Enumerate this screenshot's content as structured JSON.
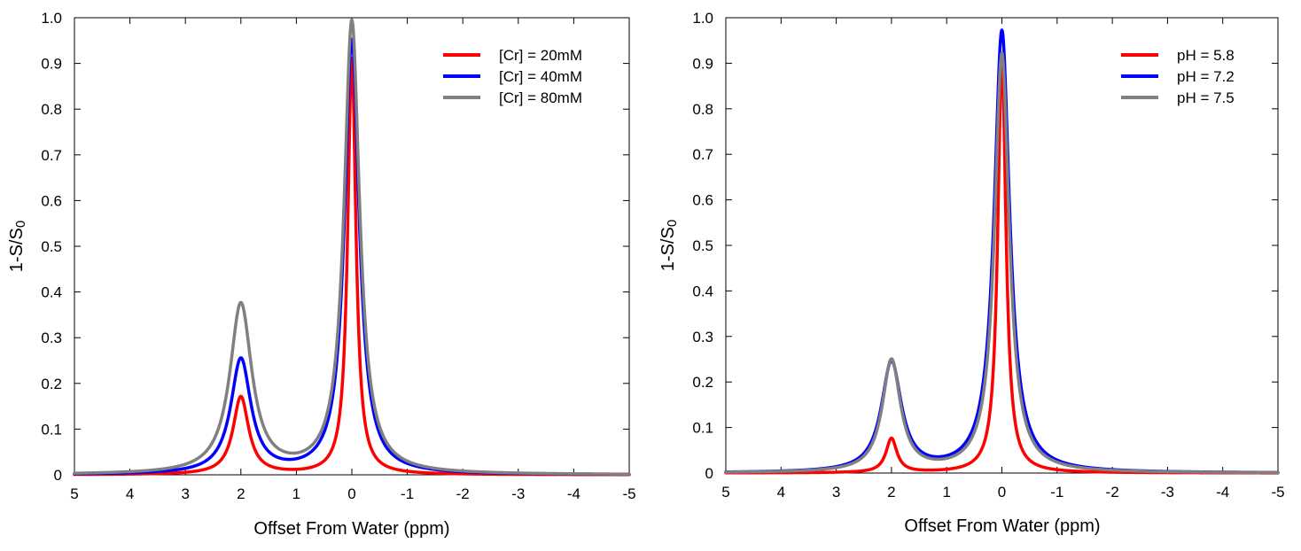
{
  "chart_data": [
    {
      "type": "line",
      "xlabel": "Offset From Water (ppm)",
      "ylabel": "1-S/S",
      "ylabel_subscript": "0",
      "xlim": [
        5,
        -5
      ],
      "ylim": [
        0,
        1.0
      ],
      "x_ticks": [
        5,
        4,
        3,
        2,
        1,
        0,
        -1,
        -2,
        -3,
        -4,
        -5
      ],
      "x_tick_labels": [
        "5",
        "4",
        "3",
        "2",
        "1",
        "0",
        "-1",
        "-2",
        "-3",
        "-4",
        "-5"
      ],
      "y_ticks": [
        0,
        0.1,
        0.2,
        0.3,
        0.4,
        0.5,
        0.6,
        0.7,
        0.8,
        0.9,
        1.0
      ],
      "y_tick_labels": [
        "0",
        "0.1",
        "0.2",
        "0.3",
        "0.4",
        "0.5",
        "0.6",
        "0.7",
        "0.8",
        "0.9",
        "1.0"
      ],
      "legend_position": "top-right",
      "series": [
        {
          "name": "[Cr] = 20mM",
          "color": "#ff0000",
          "water_peak": {
            "center": 0,
            "height": 0.91,
            "width": 0.09
          },
          "solute_peak": {
            "center": 2.0,
            "height": 0.17,
            "width": 0.17
          }
        },
        {
          "name": "[Cr] = 40mM",
          "color": "#0000ff",
          "water_peak": {
            "center": 0,
            "height": 0.95,
            "width": 0.16
          },
          "solute_peak": {
            "center": 2.0,
            "height": 0.25,
            "width": 0.22
          }
        },
        {
          "name": "[Cr] = 80mM",
          "color": "#808080",
          "water_peak": {
            "center": 0,
            "height": 0.99,
            "width": 0.17
          },
          "solute_peak": {
            "center": 2.0,
            "height": 0.37,
            "width": 0.24
          }
        }
      ]
    },
    {
      "type": "line",
      "xlabel": "Offset From Water (ppm)",
      "ylabel": "1-S/S",
      "ylabel_subscript": "0",
      "xlim": [
        5,
        -5
      ],
      "ylim": [
        0,
        1.0
      ],
      "x_ticks": [
        5,
        4,
        3,
        2,
        1,
        0,
        -1,
        -2,
        -3,
        -4,
        -5
      ],
      "x_tick_labels": [
        "5",
        "4",
        "3",
        "2",
        "1",
        "0",
        "-1",
        "-2",
        "-3",
        "-4",
        "-5"
      ],
      "y_ticks": [
        0,
        0.1,
        0.2,
        0.3,
        0.4,
        0.5,
        0.6,
        0.7,
        0.8,
        0.9,
        1.0
      ],
      "y_tick_labels": [
        "0",
        "0.1",
        "0.2",
        "0.3",
        "0.4",
        "0.5",
        "0.6",
        "0.7",
        "0.8",
        "0.9",
        "1.0"
      ],
      "legend_position": "top-right",
      "series": [
        {
          "name": "pH = 5.8",
          "color": "#ff0000",
          "water_peak": {
            "center": 0,
            "height": 0.91,
            "width": 0.09
          },
          "solute_peak": {
            "center": 2.0,
            "height": 0.075,
            "width": 0.12
          }
        },
        {
          "name": "pH = 7.2",
          "color": "#0000ff",
          "water_peak": {
            "center": 0,
            "height": 0.97,
            "width": 0.17
          },
          "solute_peak": {
            "center": 2.0,
            "height": 0.24,
            "width": 0.22
          }
        },
        {
          "name": "pH = 7.5",
          "color": "#808080",
          "water_peak": {
            "center": 0,
            "height": 0.92,
            "width": 0.16
          },
          "solute_peak": {
            "center": 2.0,
            "height": 0.245,
            "width": 0.2
          }
        }
      ]
    }
  ]
}
